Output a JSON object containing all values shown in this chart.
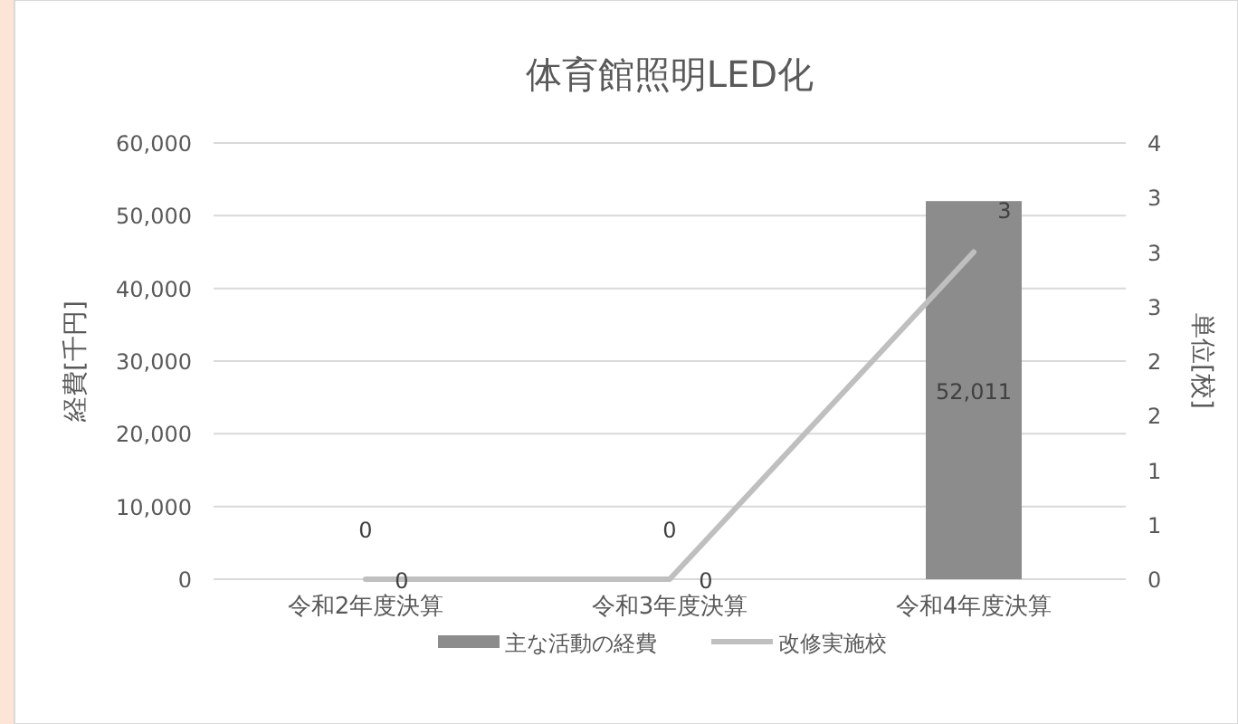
{
  "chart_data": {
    "type": "bar",
    "title": "体育館照明LED化",
    "categories": [
      "令和2年度決算",
      "令和3年度決算",
      "令和4年度決算"
    ],
    "series": [
      {
        "name": "主な活動の経費",
        "color": "#8c8c8c",
        "values": [
          0,
          0,
          52011
        ],
        "value_labels": [
          "0",
          "0",
          "52,011"
        ]
      },
      {
        "name": "改修実施校",
        "type": "line",
        "axis": "y2",
        "color": "#bfbfbf",
        "values": [
          0,
          0,
          3
        ],
        "value_labels": [
          "0",
          "0",
          "3"
        ]
      }
    ],
    "ylabel": "経費[千円]",
    "y2label": "単位[校]",
    "ylim": [
      0,
      60000
    ],
    "yticks": [
      0,
      {
        "value": 10000,
        "label": "10,000"
      },
      {
        "value": 20000,
        "label": "20,000"
      },
      {
        "value": 30000,
        "label": "30,000"
      },
      {
        "value": 40000,
        "label": "40,000"
      },
      {
        "value": 50000,
        "label": "50,000"
      },
      {
        "value": 60000,
        "label": "60,000"
      }
    ],
    "y2lim": [
      0,
      4
    ],
    "y2ticks": [
      0,
      {
        "value": 0.5,
        "label": "1"
      },
      1,
      {
        "value": 1.5,
        "label": "2"
      },
      2,
      {
        "value": 2.5,
        "label": "3"
      },
      3,
      {
        "value": 3.5,
        "label": "3"
      },
      4
    ],
    "grid": "y",
    "legend": "bottom"
  }
}
